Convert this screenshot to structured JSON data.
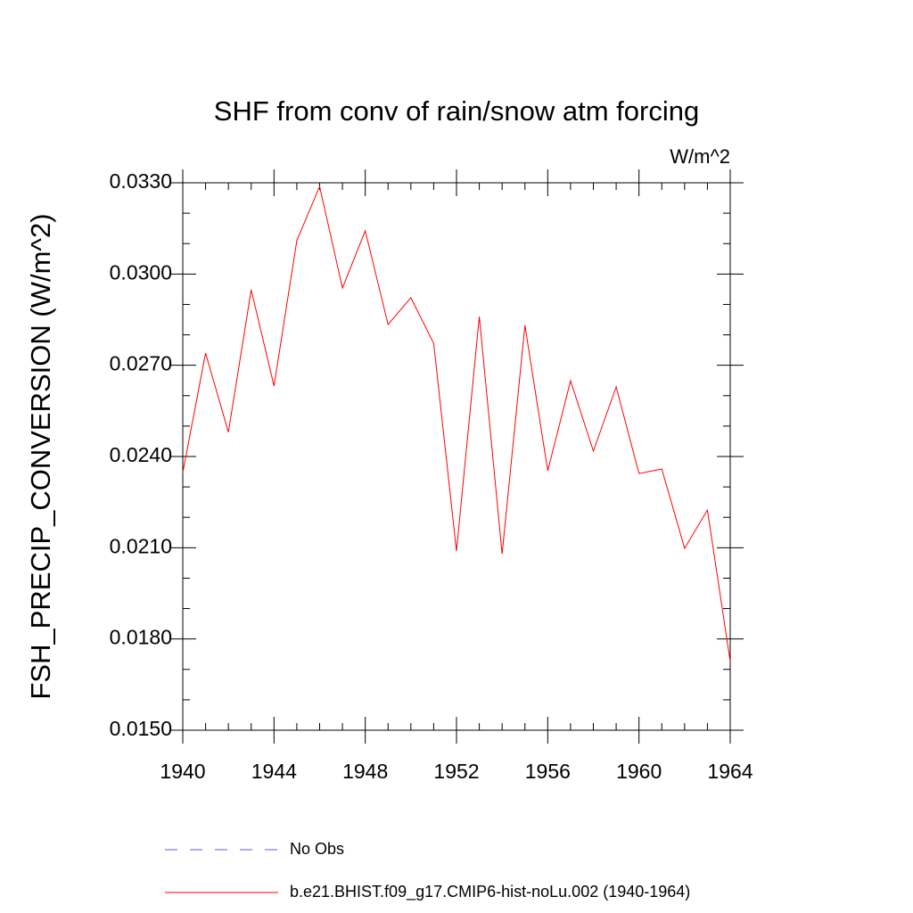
{
  "chart_data": {
    "type": "line",
    "title": "SHF from conv of rain/snow atm forcing",
    "units": "W/m^2",
    "y_label": "FSH_PRECIP_CONVERSION  (W/m^2)",
    "x": [
      1940,
      1941,
      1942,
      1943,
      1944,
      1945,
      1946,
      1947,
      1948,
      1949,
      1950,
      1951,
      1952,
      1953,
      1954,
      1955,
      1956,
      1957,
      1958,
      1959,
      1960,
      1961,
      1962,
      1963,
      1964
    ],
    "series": [
      {
        "name": "b.e21.BHIST.f09_g17.CMIP6-hist-noLu.002 (1940-1964)",
        "color": "#ff0000",
        "values": [
          0.02347,
          0.0274,
          0.0248,
          0.02948,
          0.02632,
          0.0311,
          0.03288,
          0.02954,
          0.03142,
          0.02834,
          0.02922,
          0.02772,
          0.02089,
          0.0286,
          0.0208,
          0.02831,
          0.02353,
          0.02649,
          0.02418,
          0.02629,
          0.02344,
          0.02359,
          0.02098,
          0.02224,
          0.01726
        ]
      }
    ],
    "reference": {
      "name": "No Obs",
      "color": "#6a5acd",
      "dashed": true
    },
    "xlim": [
      1940,
      1964
    ],
    "xticks": [
      1940,
      1944,
      1948,
      1952,
      1956,
      1960,
      1964
    ],
    "xminorticks": [
      1941,
      1942,
      1943,
      1945,
      1946,
      1947,
      1949,
      1950,
      1951,
      1953,
      1954,
      1955,
      1957,
      1958,
      1959,
      1961,
      1962,
      1963
    ],
    "ylim": [
      0.015,
      0.033
    ],
    "yticks": [
      {
        "value": 0.015,
        "label": "0.0150"
      },
      {
        "value": 0.018,
        "label": "0.0180"
      },
      {
        "value": 0.021,
        "label": "0.0210"
      },
      {
        "value": 0.024,
        "label": "0.0240"
      },
      {
        "value": 0.027,
        "label": "0.0270"
      },
      {
        "value": 0.03,
        "label": "0.0300"
      },
      {
        "value": 0.033,
        "label": "0.0330"
      }
    ],
    "yminorticks": [
      0.016,
      0.017,
      0.019,
      0.02,
      0.022,
      0.023,
      0.025,
      0.026,
      0.028,
      0.029,
      0.031,
      0.032
    ],
    "grid": false
  }
}
